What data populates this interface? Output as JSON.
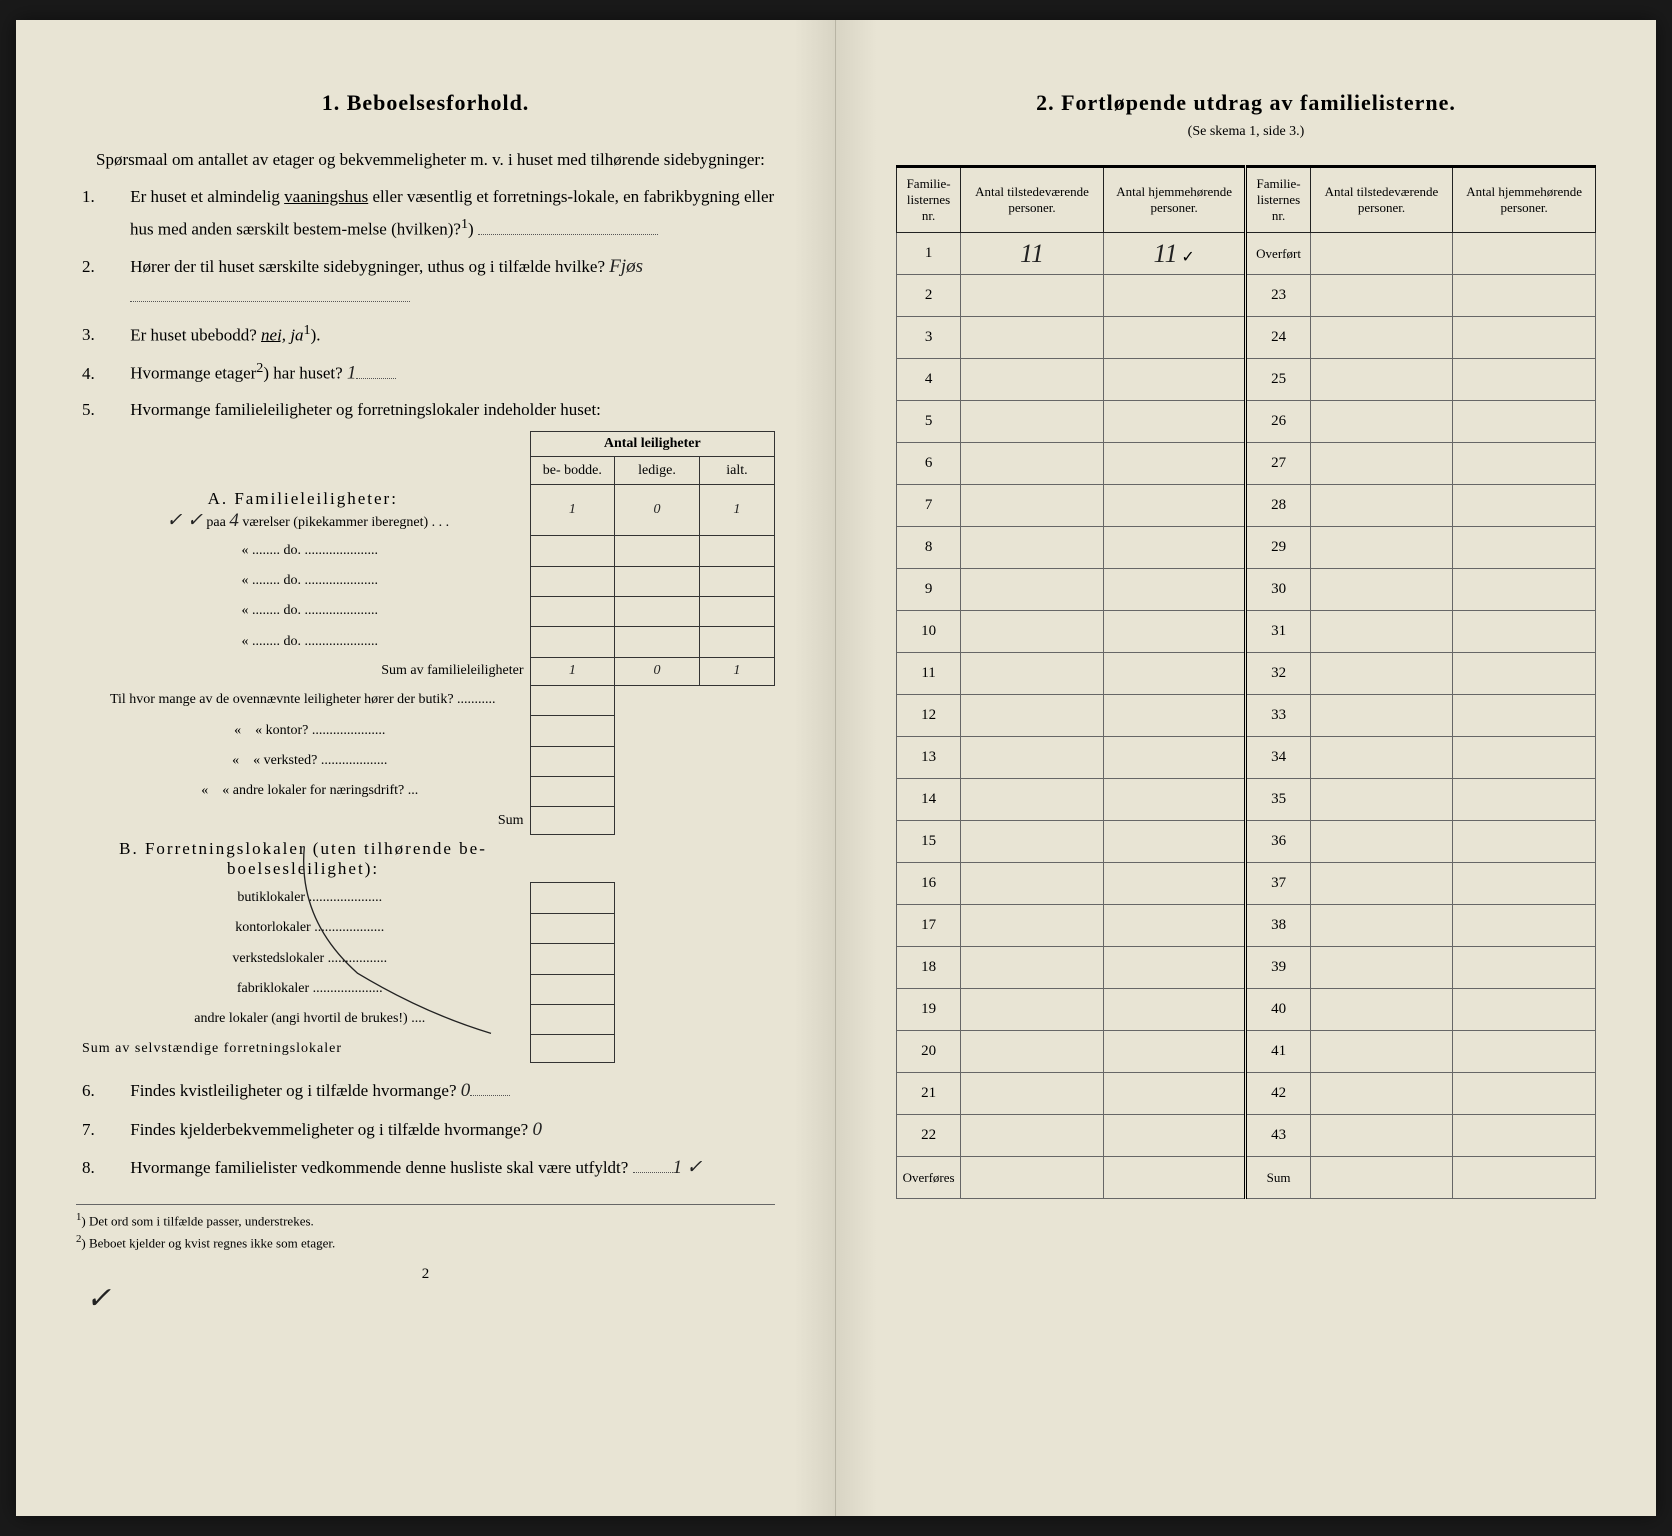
{
  "colors": {
    "paper_bg": "#e8e4d4",
    "ink": "#222222",
    "border": "#333333",
    "table_border": "#666666"
  },
  "left": {
    "title": "1.   Beboelsesforhold.",
    "intro": "Spørsmaal om antallet av etager og bekvemmeligheter m. v. i huset med tilhørende sidebygninger:",
    "q1_pre": "Er huset et almindelig ",
    "q1_underlined": "vaaningshus",
    "q1_post": " eller væsentlig et forretnings-lokale, en fabrikbygning eller hus med anden særskilt bestem-melse (hvilken)?",
    "q1_sup": "1",
    "q2": "Hører der til huset særskilte sidebygninger, uthus og i tilfælde hvilke?",
    "q2_answer": "Fjøs",
    "q3_pre": "Er huset ubebodd? ",
    "q3_nei": "nei,",
    "q3_ja": "ja",
    "q3_sup": "1",
    "q4_pre": "Hvormange etager",
    "q4_sup": "2",
    "q4_post": ") har huset?",
    "q4_answer": "1",
    "q5": "Hvormange familieleiligheter og forretningslokaler indeholder huset:",
    "leil_header": "Antal leiligheter",
    "leil_cols": [
      "be-\nbodde.",
      "ledige.",
      "ialt."
    ],
    "secA_label": "A. Familieleiligheter:",
    "secA_row1_pre": "paa",
    "secA_row1_num": "4",
    "secA_row1_post": "værelser (pikekammer iberegnet) . . .",
    "secA_row1_vals": [
      "1",
      "0",
      "1"
    ],
    "secA_do": "do.",
    "secA_sum": "Sum av familieleiligheter",
    "secA_sum_vals": [
      "1",
      "0",
      "1"
    ],
    "ovenn_intro": "Til hvor mange av de ovennævnte leiligheter hører der",
    "ovenn_items": [
      "butik?",
      "kontor?",
      "verksted?",
      "andre lokaler for næringsdrift?"
    ],
    "ovenn_sum": "Sum",
    "secB_label": "B. Forretningslokaler (uten tilhørende be-boelsesleilighet):",
    "secB_items": [
      "butiklokaler",
      "kontorlokaler",
      "verkstedslokaler",
      "fabriklokaler",
      "andre lokaler (angi hvortil de brukes!)"
    ],
    "secB_sum": "Sum av selvstændige forretningslokaler",
    "q6": "Findes kvistleiligheter og i tilfælde hvormange?",
    "q6_answer": "0",
    "q7": "Findes kjelderbekvemmeligheter og i tilfælde hvormange?",
    "q7_answer": "0",
    "q8": "Hvormange familielister vedkommende denne husliste skal være utfyldt?",
    "q8_answer": "1",
    "footnote1": "Det ord som i tilfælde passer, understrekes.",
    "footnote1_sup": "1",
    "footnote2": "Beboet kjelder og kvist regnes ikke som etager.",
    "footnote2_sup": "2",
    "pagenum": "2"
  },
  "right": {
    "title": "2.   Fortløpende utdrag av familielisterne.",
    "subtitle": "(Se skema 1, side 3.)",
    "headers": [
      "Familie-\nlisternes\nnr.",
      "Antal\ntilstedeværende\npersoner.",
      "Antal\nhjemmehørende\npersoner.",
      "Familie-\nlisternes\nnr.",
      "Antal\ntilstedeværende\npersoner.",
      "Antal\nhjemmehørende\npersoner."
    ],
    "row1": {
      "nr": "1",
      "tilstede": "11",
      "hjemme": "11",
      "right_label": "Overført"
    },
    "left_nrs": [
      "1",
      "2",
      "3",
      "4",
      "5",
      "6",
      "7",
      "8",
      "9",
      "10",
      "11",
      "12",
      "13",
      "14",
      "15",
      "16",
      "17",
      "18",
      "19",
      "20",
      "21",
      "22"
    ],
    "right_nrs": [
      "Overført",
      "23",
      "24",
      "25",
      "26",
      "27",
      "28",
      "29",
      "30",
      "31",
      "32",
      "33",
      "34",
      "35",
      "36",
      "37",
      "38",
      "39",
      "40",
      "41",
      "42",
      "43"
    ],
    "bottom_left": "Overføres",
    "bottom_right": "Sum",
    "checkmark": "✓"
  }
}
